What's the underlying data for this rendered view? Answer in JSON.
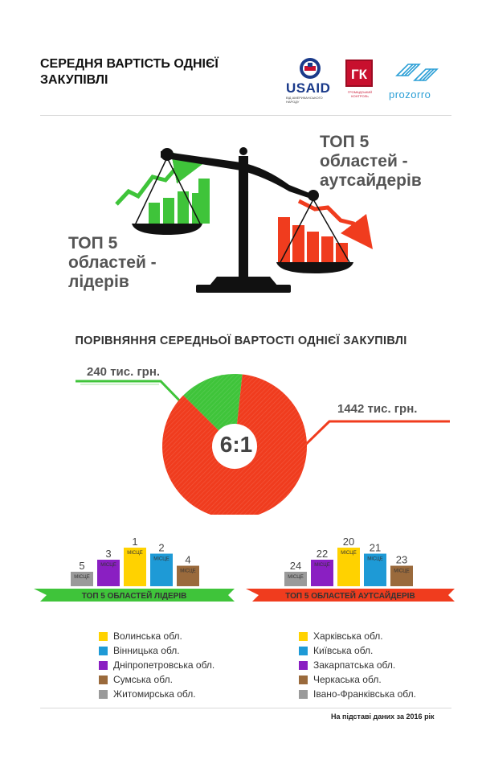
{
  "header": {
    "title_line1": "СЕРЕДНЯ ВАРТІСТЬ ОДНІЄЇ",
    "title_line2": "ЗАКУПІВЛІ",
    "logo_usaid_text": "USAID",
    "logo_usaid_sub": "ВІД АМЕРИКАНСЬКОГО НАРОДУ",
    "logo_gk_text": "ГК",
    "logo_gk_sub": "ГРОМАДСЬКИЙ КОНТРОЛЬ",
    "logo_prozorro_text": "prozorro"
  },
  "scale": {
    "leaders_label": [
      "ТОП 5",
      "областей -",
      "лідерів"
    ],
    "outsiders_label": [
      "ТОП 5",
      "областей -",
      "аутсайдерів"
    ]
  },
  "colors": {
    "green": "#3fc43a",
    "red": "#f03c1e",
    "yellow": "#ffd200",
    "blue": "#1e9ad6",
    "purple": "#8a1fc2",
    "brown": "#9a6a3c",
    "gray": "#9a9a9a"
  },
  "chart_data": [
    {
      "type": "pie",
      "title": "ПОРІВНЯННЯ СЕРЕДНЬОЇ ВАРТОСТІ ОДНІЄЇ ЗАКУПІВЛІ",
      "slices": [
        {
          "label": "240 тис. грн.",
          "value": 240,
          "color": "#3fc43a"
        },
        {
          "label": "1442 тис. грн.",
          "value": 1442,
          "color": "#f03c1e"
        }
      ],
      "center_label": "6:1"
    },
    {
      "type": "bar",
      "title": "ТОП 5 ОБЛАСТЕЙ ЛІДЕРІВ",
      "bar_label": "МІСЦЕ",
      "categories": [
        "Житомирська обл.",
        "Дніпропетровська обл.",
        "Волинська обл.",
        "Вінницька обл.",
        "Сумська обл."
      ],
      "values": [
        5,
        3,
        1,
        2,
        4
      ],
      "colors": [
        "#9a9a9a",
        "#8a1fc2",
        "#ffd200",
        "#1e9ad6",
        "#9a6a3c"
      ]
    },
    {
      "type": "bar",
      "title": "ТОП 5 ОБЛАСТЕЙ АУТСАЙДЕРІВ",
      "bar_label": "МІСЦЕ",
      "categories": [
        "Івано-Франківська обл.",
        "Закарпатська обл.",
        "Харківська обл.",
        "Київська обл.",
        "Черкаська обл."
      ],
      "values": [
        24,
        22,
        20,
        21,
        23
      ],
      "colors": [
        "#9a9a9a",
        "#8a1fc2",
        "#ffd200",
        "#1e9ad6",
        "#9a6a3c"
      ]
    }
  ],
  "legend_left": [
    {
      "label": "Волинська обл.",
      "color": "#ffd200"
    },
    {
      "label": "Вінницька обл.",
      "color": "#1e9ad6"
    },
    {
      "label": "Дніпропетровська обл.",
      "color": "#8a1fc2"
    },
    {
      "label": "Сумська обл.",
      "color": "#9a6a3c"
    },
    {
      "label": "Житомирська обл.",
      "color": "#9a9a9a"
    }
  ],
  "legend_right": [
    {
      "label": "Харківська обл.",
      "color": "#ffd200"
    },
    {
      "label": "Київська обл.",
      "color": "#1e9ad6"
    },
    {
      "label": "Закарпатська обл.",
      "color": "#8a1fc2"
    },
    {
      "label": "Черкаська обл.",
      "color": "#9a6a3c"
    },
    {
      "label": "Івано-Франківська обл.",
      "color": "#9a9a9a"
    }
  ],
  "footer": "На підставі даних за 2016 рік"
}
